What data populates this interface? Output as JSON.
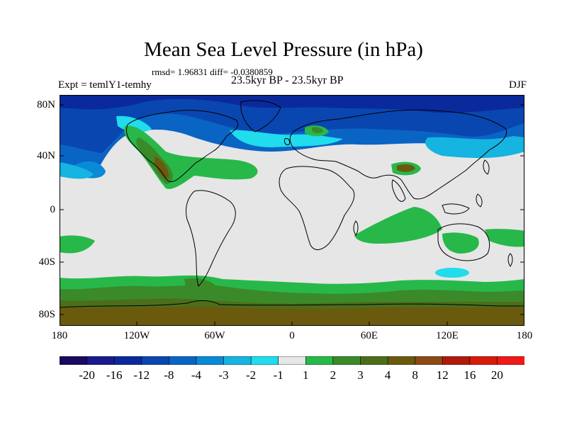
{
  "title": "Mean Sea Level Pressure (in hPa)",
  "stats": "rmsd= 1.96831 diff= -0.0380859",
  "period": "23.5kyr BP - 23.5kyr BP",
  "experiment": "Expt = temlY1-temhy",
  "season": "DJF",
  "lat_labels": [
    "80N",
    "40N",
    "0",
    "40S",
    "80S"
  ],
  "lon_labels": [
    "180",
    "120W",
    "60W",
    "0",
    "60E",
    "120E",
    "180"
  ],
  "colorbar": {
    "labels": [
      "-20",
      "-16",
      "-12",
      "-8",
      "-4",
      "-3",
      "-2",
      "-1",
      "1",
      "2",
      "3",
      "4",
      "8",
      "12",
      "16",
      "20"
    ],
    "colors": [
      "#1a0a5e",
      "#1a1a8c",
      "#0a2a9c",
      "#0a46b0",
      "#0a64c4",
      "#0a8ad6",
      "#16b4e0",
      "#20dcec",
      "#e6e6e6",
      "#28b84a",
      "#3a8a2a",
      "#4c6e1a",
      "#6a5a0e",
      "#8a4a14",
      "#b01a0a",
      "#d81a0a",
      "#f01818"
    ]
  }
}
